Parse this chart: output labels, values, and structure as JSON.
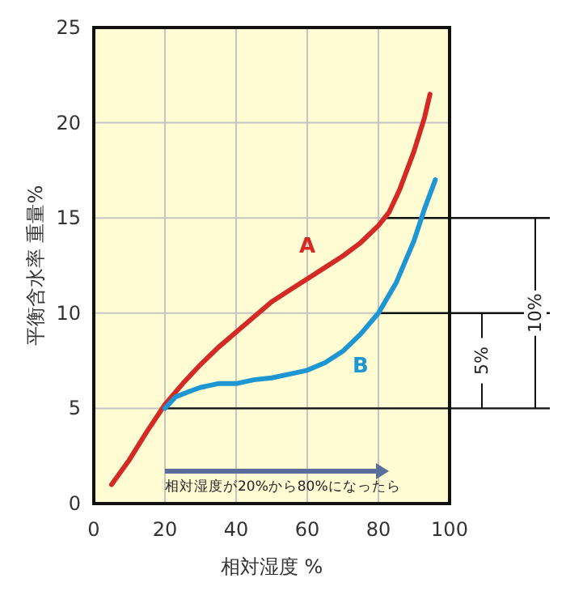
{
  "chart_data": {
    "type": "line",
    "xlabel": "相対湿度  %",
    "ylabel": "平衡含水率  重量%",
    "xlim": [
      0,
      100
    ],
    "ylim": [
      0,
      25
    ],
    "xticks": [
      0,
      20,
      40,
      60,
      80,
      100
    ],
    "yticks": [
      0,
      5,
      10,
      15,
      20,
      25
    ],
    "grid": true,
    "marker": "none",
    "line_style": "solid",
    "series": [
      {
        "name": "A",
        "color": "#d42a26",
        "x": [
          5,
          10,
          15,
          20,
          25,
          30,
          35,
          40,
          45,
          50,
          55,
          60,
          65,
          70,
          75,
          80,
          83,
          86,
          90,
          93,
          94.5
        ],
        "values": [
          1,
          2.3,
          3.8,
          5.2,
          6.3,
          7.3,
          8.2,
          9.0,
          9.8,
          10.6,
          11.2,
          11.8,
          12.4,
          13.0,
          13.7,
          14.6,
          15.3,
          16.5,
          18.5,
          20.3,
          21.5
        ]
      },
      {
        "name": "B",
        "color": "#1e96d2",
        "x": [
          20,
          23,
          27,
          30,
          35,
          40,
          45,
          50,
          55,
          60,
          65,
          70,
          75,
          80,
          85,
          90,
          93,
          96
        ],
        "values": [
          5.0,
          5.6,
          5.9,
          6.1,
          6.3,
          6.3,
          6.5,
          6.6,
          6.8,
          7.0,
          7.4,
          8.0,
          8.9,
          10.0,
          11.6,
          13.8,
          15.5,
          17
        ]
      }
    ],
    "ref_lines": [
      {
        "axis": "y",
        "value": 5
      },
      {
        "axis": "y",
        "value": 10
      },
      {
        "axis": "y",
        "value": 15
      }
    ],
    "annotations": [
      "5%",
      "10%",
      "相対湿度が20%から80%になったら"
    ]
  }
}
